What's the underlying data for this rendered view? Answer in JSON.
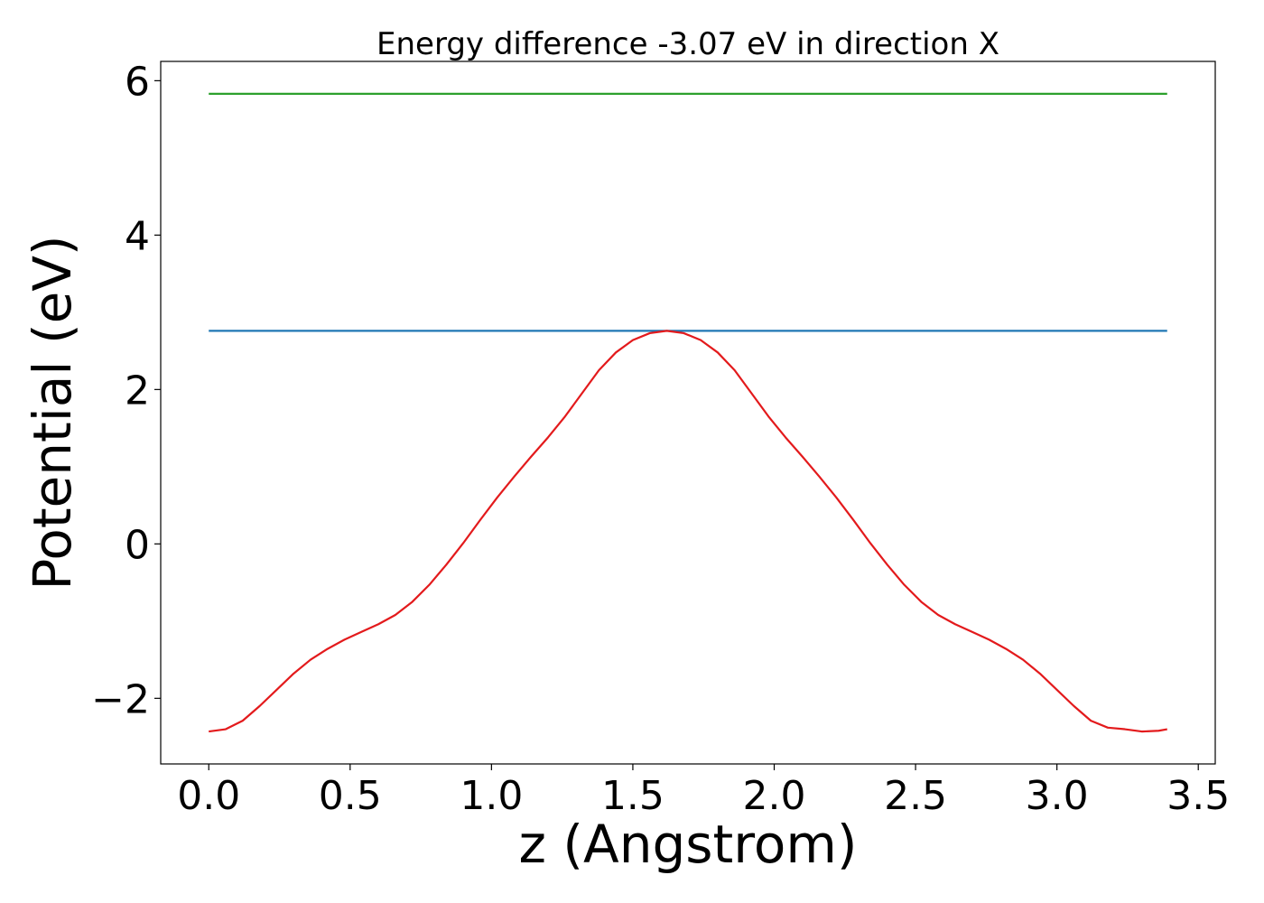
{
  "chart_data": {
    "type": "line",
    "title": "Energy difference -3.07 eV in direction X",
    "xlabel": "z (Angstrom)",
    "ylabel": "Potential (eV)",
    "xlim": [
      -0.17,
      3.56
    ],
    "ylim": [
      -2.85,
      6.25
    ],
    "xticks": [
      0.0,
      0.5,
      1.0,
      1.5,
      2.0,
      2.5,
      3.0,
      3.5
    ],
    "xtick_labels": [
      "0.0",
      "0.5",
      "1.0",
      "1.5",
      "2.0",
      "2.5",
      "3.0",
      "3.5"
    ],
    "yticks": [
      -2,
      0,
      2,
      4,
      6
    ],
    "ytick_labels": [
      "−2",
      "0",
      "2",
      "4",
      "6"
    ],
    "grid": false,
    "series": [
      {
        "color": "#2ca02c",
        "x": [
          0.0,
          3.39
        ],
        "y": [
          5.83,
          5.83
        ]
      },
      {
        "color": "#1f77b4",
        "x": [
          0.0,
          3.39
        ],
        "y": [
          2.76,
          2.76
        ]
      },
      {
        "color": "#e31a1c",
        "x": [
          0.0,
          0.06,
          0.12,
          0.18,
          0.24,
          0.3,
          0.36,
          0.42,
          0.48,
          0.54,
          0.6,
          0.66,
          0.72,
          0.78,
          0.84,
          0.9,
          0.96,
          1.02,
          1.08,
          1.14,
          1.2,
          1.26,
          1.32,
          1.38,
          1.44,
          1.5,
          1.56,
          1.62,
          1.68,
          1.74,
          1.8,
          1.86,
          1.92,
          1.98,
          2.04,
          2.1,
          2.16,
          2.22,
          2.28,
          2.34,
          2.4,
          2.46,
          2.52,
          2.58,
          2.64,
          2.7,
          2.76,
          2.82,
          2.88,
          2.94,
          3.0,
          3.06,
          3.12,
          3.18,
          3.24,
          3.3,
          3.36,
          3.39
        ],
        "y": [
          -2.43,
          -2.4,
          -2.29,
          -2.1,
          -1.89,
          -1.68,
          -1.5,
          -1.36,
          -1.24,
          -1.14,
          -1.04,
          -0.92,
          -0.75,
          -0.53,
          -0.27,
          0.01,
          0.31,
          0.6,
          0.87,
          1.13,
          1.38,
          1.65,
          1.95,
          2.25,
          2.48,
          2.64,
          2.73,
          2.76,
          2.73,
          2.64,
          2.48,
          2.25,
          1.95,
          1.65,
          1.38,
          1.13,
          0.87,
          0.6,
          0.31,
          0.01,
          -0.27,
          -0.53,
          -0.75,
          -0.92,
          -1.04,
          -1.14,
          -1.24,
          -1.36,
          -1.5,
          -1.68,
          -1.89,
          -2.1,
          -2.29,
          -2.38,
          -2.4,
          -2.43,
          -2.42,
          -2.4
        ]
      }
    ]
  }
}
